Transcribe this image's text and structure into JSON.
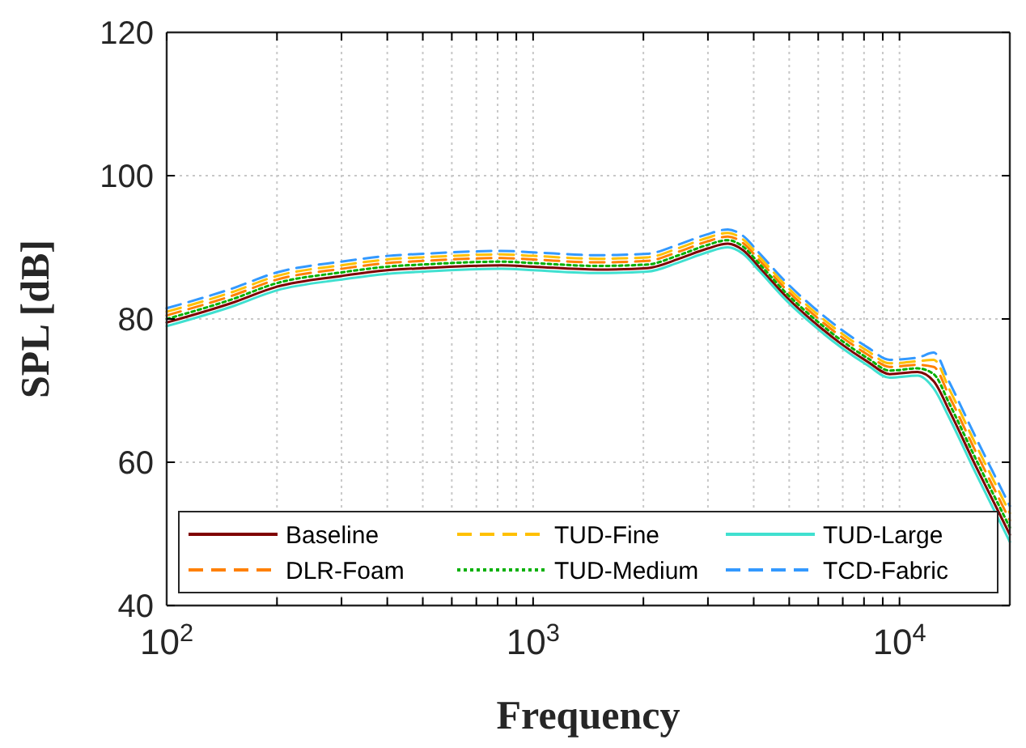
{
  "chart_data": {
    "type": "line",
    "xlabel": "Frequency",
    "ylabel": "SPL [dB]",
    "log": "x",
    "grid": true,
    "legend": "bottom",
    "xlim": [
      100,
      20000
    ],
    "ylim": [
      40,
      120
    ],
    "xticks": [
      {
        "value": 100,
        "label": "10$^{2}$"
      },
      {
        "value": 200,
        "label": null
      },
      {
        "value": 300,
        "label": null
      },
      {
        "value": 400,
        "label": null
      },
      {
        "value": 500,
        "label": null
      },
      {
        "value": 600,
        "label": null
      },
      {
        "value": 700,
        "label": null
      },
      {
        "value": 800,
        "label": null
      },
      {
        "value": 900,
        "label": null
      },
      {
        "value": 1000,
        "label": "10$^{3}$"
      },
      {
        "value": 2000,
        "label": null
      },
      {
        "value": 3000,
        "label": null
      },
      {
        "value": 4000,
        "label": null
      },
      {
        "value": 5000,
        "label": null
      },
      {
        "value": 6000,
        "label": null
      },
      {
        "value": 7000,
        "label": null
      },
      {
        "value": 8000,
        "label": null
      },
      {
        "value": 9000,
        "label": null
      },
      {
        "value": 10000,
        "label": "10$^{4}$"
      },
      {
        "value": 20000,
        "label": null
      }
    ],
    "yticks": [
      40,
      60,
      80,
      100,
      120
    ],
    "x": [
      100,
      150,
      200,
      300,
      400,
      500,
      820,
      1000,
      1500,
      2050,
      2500,
      2980,
      3400,
      3740,
      4160,
      4930,
      5830,
      6900,
      8200,
      9400,
      11200,
      12400,
      13700,
      16100,
      19000,
      20000
    ],
    "series": [
      {
        "name": "Baseline",
        "color": "#7f0000",
        "line_style": "solid",
        "values": [
          79.5,
          82.2,
          84.5,
          86.0,
          86.8,
          87.1,
          87.5,
          87.3,
          86.9,
          87.1,
          88.4,
          89.8,
          90.5,
          89.6,
          87.1,
          83.0,
          79.6,
          76.6,
          74.0,
          72.3,
          72.6,
          71.3,
          67.1,
          59.6,
          52.2,
          49.9
        ]
      },
      {
        "name": "DLR-Foam",
        "color": "#ff8000",
        "line_style": "dashed",
        "values": [
          80.5,
          83.2,
          85.5,
          87.0,
          87.8,
          88.1,
          88.5,
          88.3,
          87.9,
          88.1,
          89.4,
          90.8,
          91.5,
          90.6,
          88.1,
          84.0,
          80.6,
          77.6,
          75.0,
          73.3,
          73.6,
          73.3,
          69.1,
          61.6,
          54.2,
          51.9
        ]
      },
      {
        "name": "TUD-Fine",
        "color": "#ffc000",
        "line_style": "dashed",
        "values": [
          81.0,
          83.7,
          86.0,
          87.5,
          88.3,
          88.6,
          89.0,
          88.8,
          88.4,
          88.6,
          89.9,
          91.3,
          92.0,
          91.1,
          88.6,
          84.5,
          81.1,
          78.1,
          75.5,
          73.8,
          74.1,
          74.3,
          70.1,
          62.6,
          55.2,
          52.9
        ]
      },
      {
        "name": "TUD-Medium",
        "color": "#00b000",
        "line_style": "dotted",
        "values": [
          80.0,
          82.7,
          85.0,
          86.5,
          87.3,
          87.6,
          88.0,
          87.8,
          87.4,
          87.6,
          88.9,
          90.3,
          91.0,
          90.1,
          87.6,
          83.5,
          80.1,
          77.1,
          74.5,
          72.8,
          73.1,
          72.3,
          68.1,
          60.6,
          53.2,
          50.9
        ]
      },
      {
        "name": "TUD-Large",
        "color": "#40e0d0",
        "line_style": "solid",
        "values": [
          79.0,
          81.7,
          84.0,
          85.5,
          86.3,
          86.6,
          87.0,
          86.8,
          86.4,
          86.6,
          87.9,
          89.3,
          90.0,
          89.1,
          86.6,
          82.5,
          79.1,
          76.1,
          73.5,
          71.8,
          72.1,
          70.3,
          66.1,
          58.6,
          51.2,
          48.9
        ]
      },
      {
        "name": "TCD-Fabric",
        "color": "#3399ff",
        "line_style": "dashed",
        "values": [
          81.5,
          84.2,
          86.5,
          88.0,
          88.8,
          89.1,
          89.5,
          89.3,
          88.9,
          89.1,
          90.4,
          91.8,
          92.5,
          91.6,
          89.1,
          85.0,
          81.6,
          78.6,
          76.0,
          74.3,
          74.6,
          75.3,
          71.1,
          63.6,
          56.2,
          53.9
        ]
      }
    ]
  }
}
